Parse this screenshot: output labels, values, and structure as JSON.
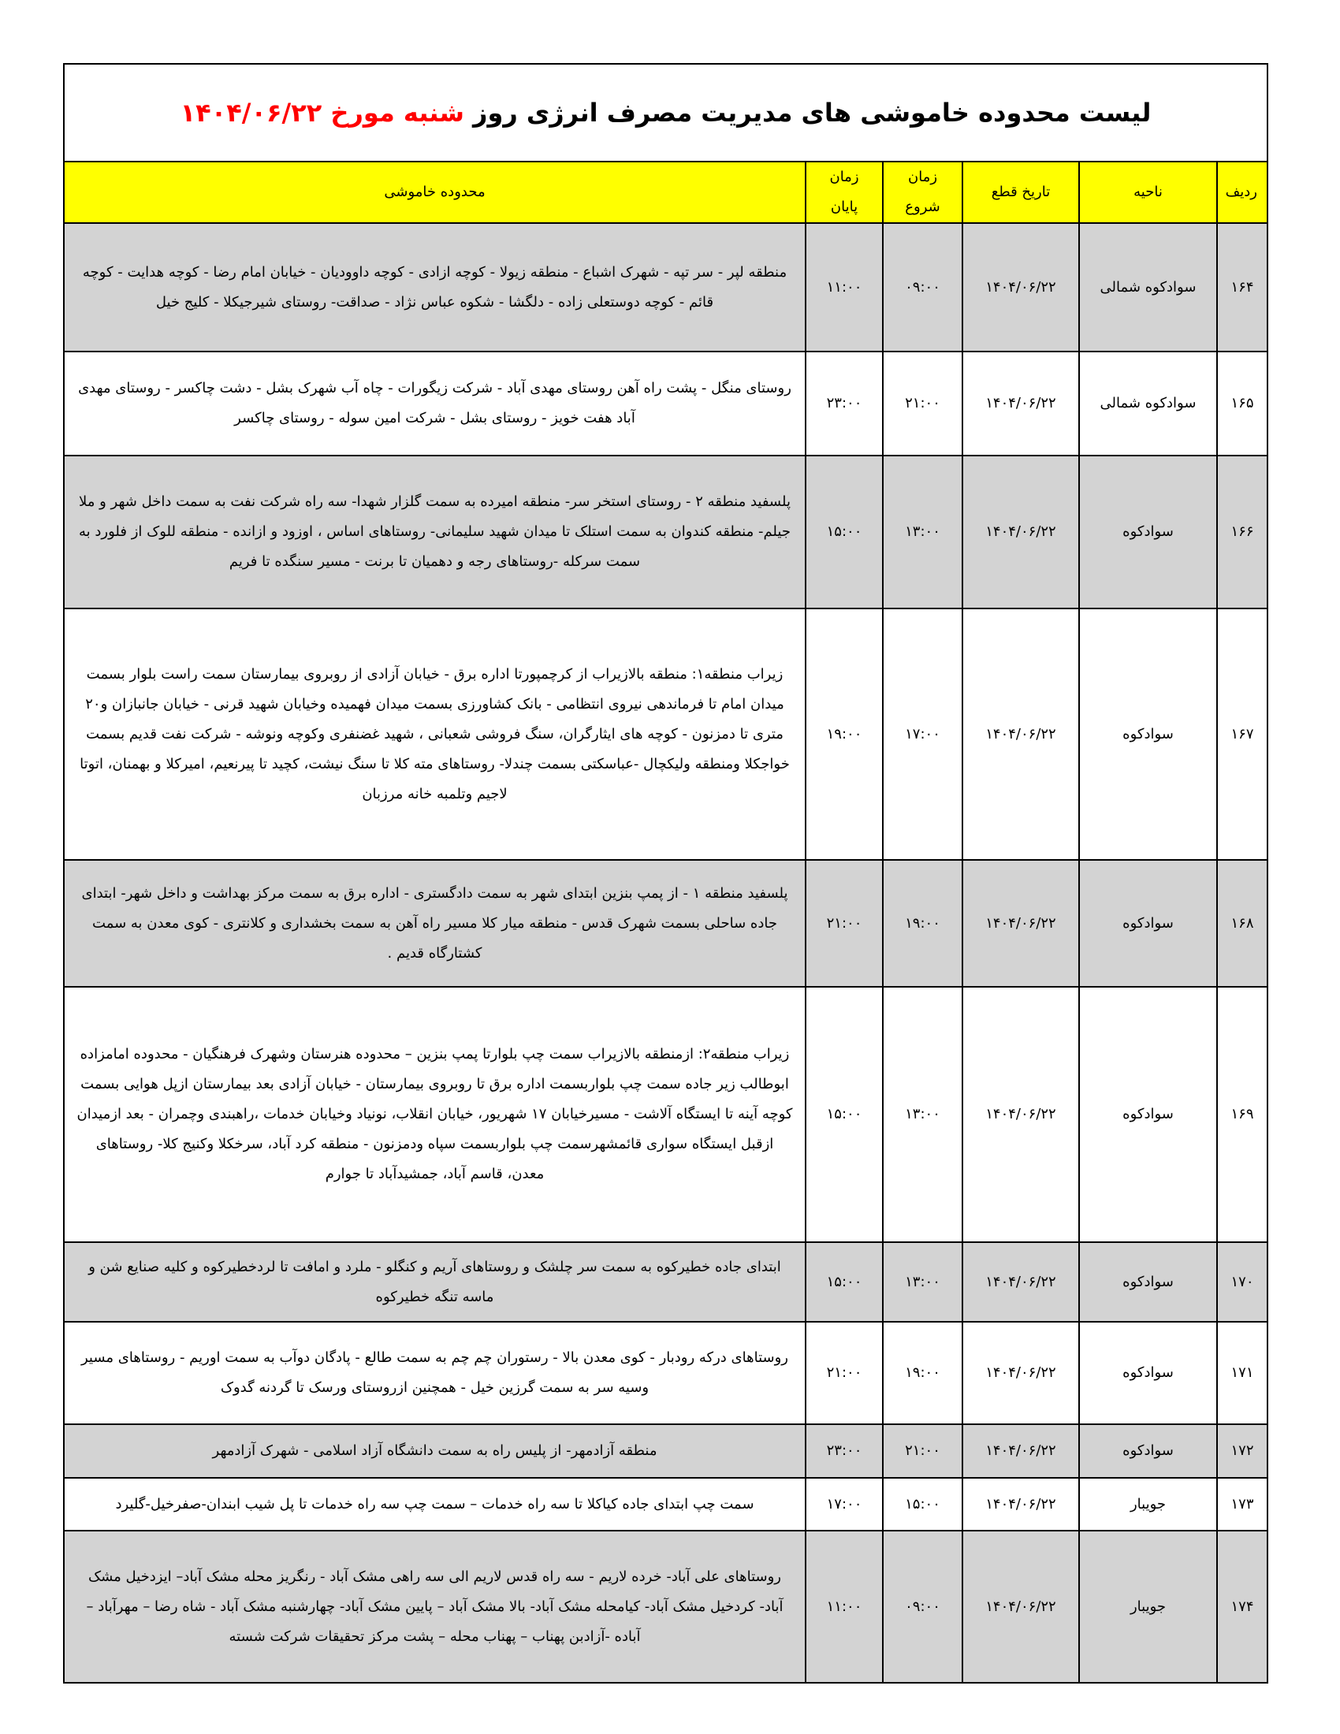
{
  "title": {
    "main": "لیست محدوده خاموشی های مدیریت مصرف انرژی روز",
    "highlight": "شنبه مورخ  ۱۴۰۴/۰۶/۲۲",
    "highlight_color": "#ff0000"
  },
  "colors": {
    "header_bg": "#ffff00",
    "alt_row_bg": "#d3d3d3"
  },
  "columns": [
    "ردیف",
    "ناحیه",
    "تاریخ قطع",
    "زمان شروع",
    "زمان پایان",
    "محدوده خاموشی"
  ],
  "rows": [
    {
      "radif": "۱۶۴",
      "region": "سوادکوه شمالی",
      "date": "۱۴۰۴/۰۶/۲۲",
      "start": "۰۹:۰۰",
      "end": "۱۱:۰۰",
      "area": "منطقه لپر - سر تپه - شهرک اشباع - منطقه زیولا - کوچه ازادی - کوچه داوودیان - خیابان امام رضا - کوچه هدایت - کوچه قائم - کوچه دوستعلی زاده - دلگشا - شکوه عباس نژاد - صداقت- روستای شیرجیکلا - کلیج خیل"
    },
    {
      "radif": "۱۶۵",
      "region": "سوادکوه شمالی",
      "date": "۱۴۰۴/۰۶/۲۲",
      "start": "۲۱:۰۰",
      "end": "۲۳:۰۰",
      "area": "روستای منگل - پشت راه آهن روستای مهدی آباد - شرکت زیگورات - چاه آب شهرک بشل - دشت چاکسر - روستای مهدی آباد هفت خویز - روستای بشل - شرکت امین سوله - روستای چاکسر"
    },
    {
      "radif": "۱۶۶",
      "region": "سوادکوه",
      "date": "۱۴۰۴/۰۶/۲۲",
      "start": "۱۳:۰۰",
      "end": "۱۵:۰۰",
      "area": "پلسفید منطقه ۲ - روستای استخر سر- منطقه امیرده به سمت گلزار شهدا- سه راه شرکت نفت به سمت داخل شهر و ملا جیلم- منطقه کندوان به سمت استلک تا میدان شهید سلیمانی- روستاهای اساس ، اوزود و ازانده - منطقه للوک از فلورد به سمت سرکله -روستاهای رجه و دهمیان تا برنت - مسیر سنگده تا فریم"
    },
    {
      "radif": "۱۶۷",
      "region": "سوادکوه",
      "date": "۱۴۰۴/۰۶/۲۲",
      "start": "۱۷:۰۰",
      "end": "۱۹:۰۰",
      "area": "زیراب منطقه۱: منطقه بالازیراب از کرچمپورتا اداره برق - خیابان آزادی از روبروی بیمارستان سمت راست بلوار بسمت میدان امام تا فرماندهی نیروی انتظامی - بانک کشاورزی بسمت میدان فهمیده وخیابان شهید قرنی - خیابان جانبازان و۲۰ متری تا دمزنون - کوچه های ایثارگران، سنگ فروشی شعبانی ، شهید غضنفری وکوچه ونوشه - شرکت نفت قدیم بسمت خواجکلا ومنطقه ولیکچال -عباسکتی بسمت چندلا- روستاهای مته کلا تا سنگ نیشت، کچید تا پیرنعیم، امیرکلا و بهمنان، اتوتا لاجیم وتلمبه خانه مرزبان"
    },
    {
      "radif": "۱۶۸",
      "region": "سوادکوه",
      "date": "۱۴۰۴/۰۶/۲۲",
      "start": "۱۹:۰۰",
      "end": "۲۱:۰۰",
      "area": "پلسفید منطقه ۱ - از پمپ بنزین ابتدای شهر  به سمت دادگستری - اداره برق به سمت مرکز بهداشت و داخل شهر- ابتدای جاده ساحلی بسمت شهرک قدس - منطقه میار کلا مسیر راه آهن به سمت بخشداری و کلانتری - کوی معدن به سمت کشتارگاه قدیم  ."
    },
    {
      "radif": "۱۶۹",
      "region": "سوادکوه",
      "date": "۱۴۰۴/۰۶/۲۲",
      "start": "۱۳:۰۰",
      "end": "۱۵:۰۰",
      "area": "زیراب منطقه۲: ازمنطقه بالازیراب سمت چپ بلوارتا پمپ بنزین – محدوده هنرستان وشهرک فرهنگیان - محدوده امامزاده ابوطالب زیر جاده سمت چپ بلواربسمت اداره برق تا روبروی بیمارستان - خیابان آزادی بعد بیمارستان ازپل هوایی بسمت کوچه آینه تا ایستگاه آلاشت - مسیرخیابان ۱۷ شهریور، خیابان انقلاب، نونیاد وخیابان خدمات ،راهبندی وچمران - بعد ازمیدان ازقبل ایستگاه سواری قائمشهرسمت چپ بلواربسمت سپاه ودمزنون - منطقه کرد آباد، سرخکلا وکنیج کلا- روستاهای معدن، قاسم آباد، جمشیدآباد تا جوارم"
    },
    {
      "radif": "۱۷۰",
      "region": "سوادکوه",
      "date": "۱۴۰۴/۰۶/۲۲",
      "start": "۱۳:۰۰",
      "end": "۱۵:۰۰",
      "area": "ابتدای جاده خطیرکوه به سمت سر چلشک و روستاهای آریم و کنگلو - ملرد و امافت تا لردخطیرکوه و کلیه صنایع شن و ماسه تنگه خطیرکوه"
    },
    {
      "radif": "۱۷۱",
      "region": "سوادکوه",
      "date": "۱۴۰۴/۰۶/۲۲",
      "start": "۱۹:۰۰",
      "end": "۲۱:۰۰",
      "area": "روستاهای درکه رودبار - کوی معدن بالا - رستوران چم چم به سمت طالع - پادگان دوآب به سمت اوریم - روستاهای مسیر وسیه سر به سمت گرزین خیل - همچنین ازروستای  ورسک تا گردنه گدوک"
    },
    {
      "radif": "۱۷۲",
      "region": "سوادکوه",
      "date": "۱۴۰۴/۰۶/۲۲",
      "start": "۲۱:۰۰",
      "end": "۲۳:۰۰",
      "area": "منطقه آزادمهر- از پلیس راه به سمت دانشگاه آزاد اسلامی - شهرک آزادمهر"
    },
    {
      "radif": "۱۷۳",
      "region": "جویبار",
      "date": "۱۴۰۴/۰۶/۲۲",
      "start": "۱۵:۰۰",
      "end": "۱۷:۰۰",
      "area": "سمت چپ  ابتدای جاده کیاکلا تا سه راه خدمات – سمت چپ سه راه خدمات تا پل شیب ابندان-صفرخیل-گلیرد"
    },
    {
      "radif": "۱۷۴",
      "region": "جویبار",
      "date": "۱۴۰۴/۰۶/۲۲",
      "start": "۰۹:۰۰",
      "end": "۱۱:۰۰",
      "area": "روستاهای علی آباد- خرده لاریم - سه راه قدس لاریم الی سه راهی مشک آباد - رنگریز محله مشک آباد– ایزدخیل مشک آباد- کردخیل مشک آباد- کیامحله مشک آباد- بالا مشک آباد – پایین مشک آباد- چهارشنبه مشک آباد -  شاه رضا – مهرآباد – آباده -آزادبن پهناب – پهناب محله – پشت مرکز تحقیقات شرکت شسته"
    }
  ]
}
